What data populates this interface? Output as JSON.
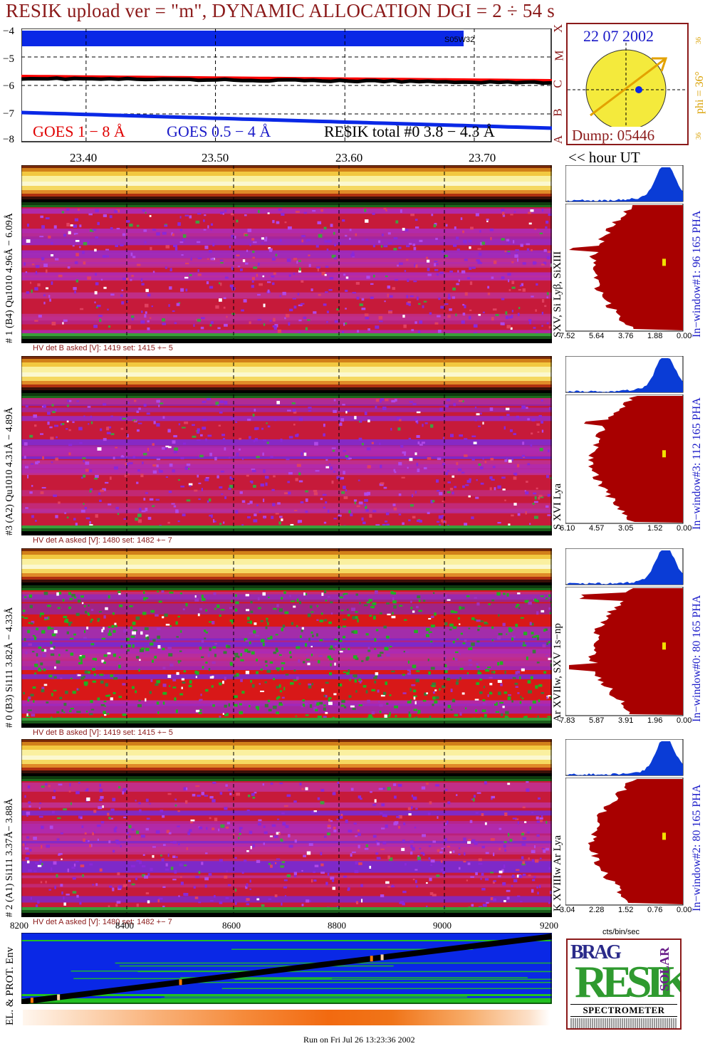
{
  "title": "RESIK upload ver = \"m\", DYNAMIC ALLOCATION  DGI =   2 ÷  54 s",
  "goes": {
    "ylabels": [
      "−4",
      "−5",
      "−6",
      "−7",
      "−8"
    ],
    "legend_goes18": "GOES 1 − 8 Å",
    "legend_goes054": "GOES 0.5 − 4 Å",
    "legend_resik": "RE$IK total #0  3.8 − 4.3 Å",
    "annotation": "S05W32",
    "class_letters": [
      "X",
      "M",
      "C",
      "B",
      "A"
    ]
  },
  "sun": {
    "date": "22 07 2002",
    "dump": "Dump: 05446",
    "phi": "phi = 36°",
    "small_top": "36",
    "small_bottom": "36"
  },
  "time_axis": {
    "labels": [
      "23.40",
      "23.50",
      "23.60",
      "23.70"
    ],
    "unit_label": "<< hour UT"
  },
  "panels": [
    {
      "left_label": "# 1 (B4) Qu1010 4.96Å − 6.09Å",
      "hv": "HV det B asked [V]:  1419 set:  1415  +−    5",
      "lines": "SXV, Si Lyβ, SiXIII",
      "right_label": "In−window#1:   96 165  PHA",
      "scale": [
        "7.52",
        "5.64",
        "3.76",
        "1.88",
        "0.00"
      ]
    },
    {
      "left_label": "#3 (A2) Qu1010  4.31Å − 4.89Å",
      "hv": "HV det A asked [V]:  1480 set:  1482  +−    7",
      "lines": "S XVI Lya",
      "right_label": "In−window#3:  112 165  PHA",
      "scale": [
        "6.10",
        "4.57",
        "3.05",
        "1.52",
        "0.00"
      ]
    },
    {
      "left_label": "# 0 (B3) Si111  3.82Å − 4.33Å",
      "hv": "HV det B asked [V]:  1419 set:  1415  +−    5",
      "lines": "Ar XVIIw, SXV 1s−np",
      "right_label": "In−window#0:   80 165  PHA",
      "scale": [
        "7.83",
        "5.87",
        "3.91",
        "1.96",
        "0.00"
      ]
    },
    {
      "left_label": "# 2 (A1) Si111  3.37Å− 3.88Å",
      "hv": "HV det A asked [V]:  1480 set:  1482  +−    7",
      "lines": "K XVIIIw  Ar Lya",
      "right_label": "In−window#2:   80 165  PHA",
      "scale": [
        "3.04",
        "2.28",
        "1.52",
        "0.76",
        "0.00"
      ]
    }
  ],
  "bottom": {
    "x_labels": [
      "8200",
      "8400",
      "8600",
      "8800",
      "9000",
      "9200"
    ],
    "env_label": "EL. & PROT. Env",
    "cts_label": "cts/bin/sec",
    "run_info": "Run on Fri Jul 26 13:23:36 2002"
  },
  "logo": {
    "brag": "BRAG",
    "resik": "RESIK",
    "solar": "SOLAR",
    "spectrometer": "SPECTROMETER"
  },
  "colors": {
    "maroon": "#8b1a1a",
    "goes_red": "#ff0000",
    "goes_blue": "#0a28e6",
    "pha_blue": "#0a3cd6",
    "spectrum_fill": "#a80000",
    "sun_yellow": "#f4ea3c"
  },
  "chart_data": [
    {
      "type": "line",
      "title": "",
      "xlabel": "",
      "ylabel": "",
      "ylim": [
        -8,
        -4
      ],
      "xlim": [
        23.35,
        23.76
      ],
      "grid": true,
      "series": [
        {
          "name": "GOES 1 − 8 Å",
          "x": [
            23.35,
            23.76
          ],
          "y": [
            -5.7,
            -5.85
          ]
        },
        {
          "name": "GOES 0.5 − 4 Å",
          "x": [
            23.35,
            23.76
          ],
          "y": [
            -6.95,
            -7.5
          ]
        },
        {
          "name": "RE$IK total #0  3.8 − 4.3 Å",
          "x": [
            23.35,
            23.76
          ],
          "y": [
            -5.75,
            -5.9
          ]
        }
      ]
    },
    {
      "type": "line",
      "title": "",
      "xlabel": "",
      "ylabel": "EL. & PROT. Env",
      "xlim": [
        8200,
        9200
      ],
      "ylim": [
        0,
        1
      ],
      "series": [
        {
          "name": "",
          "x": [
            8200,
            9200
          ],
          "y": [
            0.03,
            0.95
          ]
        }
      ]
    }
  ]
}
